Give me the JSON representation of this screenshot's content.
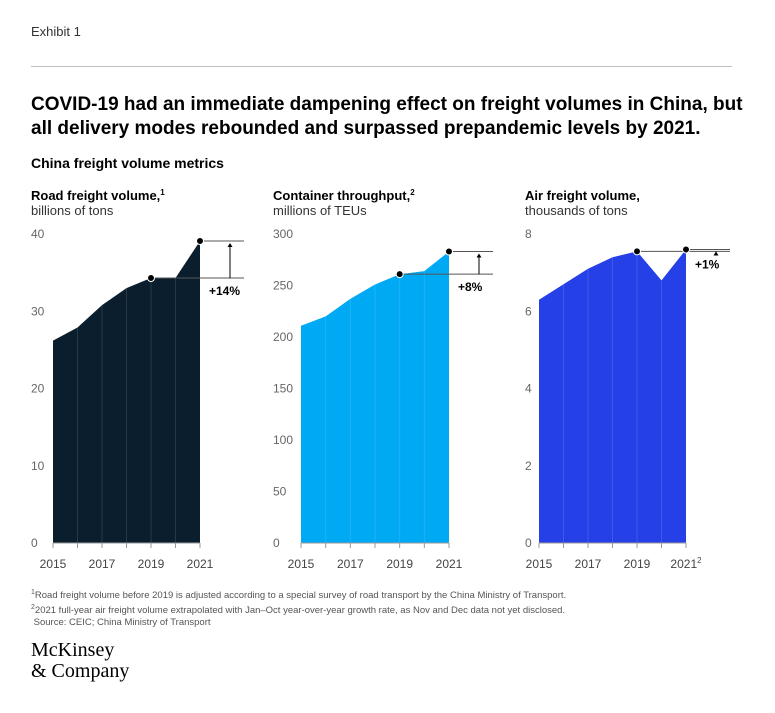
{
  "exhibit_label": "Exhibit 1",
  "headline": "COVID-19 had an immediate dampening effect on freight volumes in China, but all delivery modes rebounded and surpassed prepandemic levels by 2021.",
  "subtitle": "China freight volume metrics",
  "colors": {
    "road": "#0a1e2e",
    "container": "#00a9f4",
    "air": "#2640e8",
    "axis": "#999999"
  },
  "chart_data": [
    {
      "type": "area",
      "title": "Road freight volume,",
      "title_sup": "1",
      "unit": "billions of tons",
      "x": [
        2015,
        2016,
        2017,
        2018,
        2019,
        2020,
        2021
      ],
      "values": [
        26.2,
        27.9,
        30.8,
        33.0,
        34.3,
        34.3,
        39.1
      ],
      "ylim": [
        0,
        40
      ],
      "yticks": [
        0,
        10,
        20,
        30,
        40
      ],
      "xtick_labels": [
        "2015",
        "2017",
        "2019",
        "2021"
      ],
      "xtick_years": [
        2015,
        2017,
        2019,
        2021
      ],
      "xtick_sup": [
        "",
        "",
        "",
        ""
      ],
      "annotation": "+14%",
      "compare_years": [
        2019,
        2021
      ]
    },
    {
      "type": "area",
      "title": "Container throughput,",
      "title_sup": "2",
      "unit": "millions of TEUs",
      "x": [
        2015,
        2016,
        2017,
        2018,
        2019,
        2020,
        2021
      ],
      "values": [
        211,
        220,
        237,
        251,
        261,
        264,
        283
      ],
      "ylim": [
        0,
        300
      ],
      "yticks": [
        0,
        50,
        100,
        150,
        200,
        250,
        300
      ],
      "xtick_labels": [
        "2015",
        "2017",
        "2019",
        "2021"
      ],
      "xtick_years": [
        2015,
        2017,
        2019,
        2021
      ],
      "xtick_sup": [
        "",
        "",
        "",
        ""
      ],
      "annotation": "+8%",
      "compare_years": [
        2019,
        2021
      ]
    },
    {
      "type": "area",
      "title": "Air freight volume,",
      "title_sup": "",
      "unit": "thousands of tons",
      "x": [
        2015,
        2016,
        2017,
        2018,
        2019,
        2020,
        2021
      ],
      "values": [
        6.3,
        6.7,
        7.1,
        7.4,
        7.55,
        6.8,
        7.6
      ],
      "ylim": [
        0,
        8
      ],
      "yticks": [
        0,
        2,
        4,
        6,
        8
      ],
      "xtick_labels": [
        "2015",
        "2017",
        "2019",
        "2021"
      ],
      "xtick_years": [
        2015,
        2017,
        2019,
        2021
      ],
      "xtick_sup": [
        "",
        "",
        "",
        "2"
      ],
      "annotation": "+1%",
      "compare_years": [
        2019,
        2021
      ]
    }
  ],
  "footnotes": [
    {
      "sup": "1",
      "text": "Road freight volume before 2019 is adjusted according to a special survey of road transport by the China Ministry of Transport."
    },
    {
      "sup": "2",
      "text": "2021 full-year air freight volume extrapolated with Jan–Oct year-over-year growth rate, as Nov and Dec data not yet disclosed."
    }
  ],
  "source": "Source: CEIC; China Ministry of Transport",
  "logo": {
    "line1": "McKinsey",
    "line2": "& Company"
  }
}
